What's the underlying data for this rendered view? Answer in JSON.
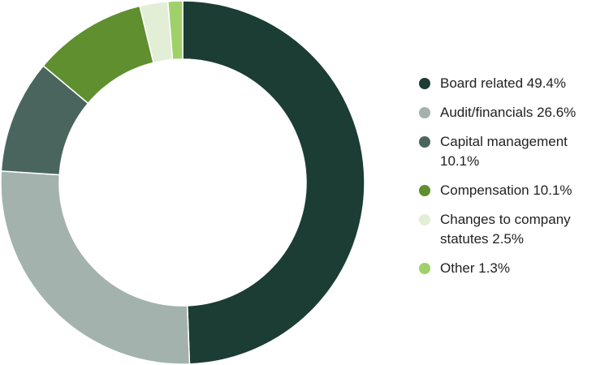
{
  "chart_data": {
    "type": "pie",
    "donut": true,
    "title": "",
    "legend_position": "right",
    "slices": [
      {
        "label": "Board related",
        "value": 49.4,
        "display": "Board related 49.4%",
        "color": "#1b3d33"
      },
      {
        "label": "Audit/financials",
        "value": 26.6,
        "display": "Audit/financials 26.6%",
        "color": "#a3b2ad"
      },
      {
        "label": "Capital management",
        "value": 10.1,
        "display": "Capital management 10.1%",
        "color": "#4a655d"
      },
      {
        "label": "Compensation",
        "value": 10.1,
        "display": "Compensation 10.1%",
        "color": "#5f8f2f"
      },
      {
        "label": "Changes to company statutes",
        "value": 2.5,
        "display": "Changes to company statutes 2.5%",
        "color": "#e3eed7"
      },
      {
        "label": "Other",
        "value": 1.3,
        "display": "Other 1.3%",
        "color": "#9fd06a"
      }
    ]
  }
}
